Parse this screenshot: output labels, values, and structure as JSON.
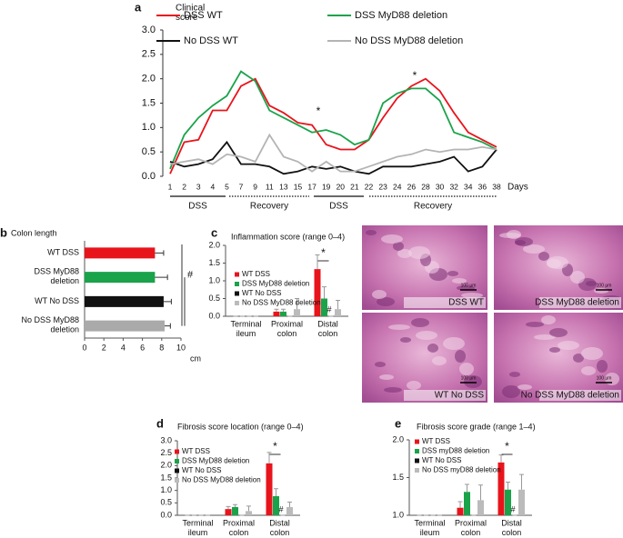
{
  "chart_data": [
    {
      "panel": "a",
      "type": "line",
      "ylabel": "Clinical score",
      "xlabel": "Days",
      "categories": [
        1,
        2,
        3,
        4,
        5,
        7,
        9,
        11,
        13,
        15,
        17,
        19,
        20,
        21,
        22,
        23,
        24,
        26,
        28,
        30,
        32,
        34,
        36,
        38
      ],
      "ylim": [
        0,
        3
      ],
      "yticks": [
        {
          "value": 0,
          "label": "0.0"
        },
        0.5,
        {
          "value": 1,
          "label": "1.0"
        },
        1.5,
        {
          "value": 2,
          "label": "2.0"
        },
        2.5,
        {
          "value": 3,
          "label": "3.0"
        }
      ],
      "series": [
        {
          "name": "DSS WT",
          "color": "#e8141c",
          "values": [
            0.05,
            0.7,
            0.75,
            1.35,
            1.35,
            1.85,
            2.0,
            1.45,
            1.3,
            1.1,
            1.05,
            0.65,
            0.55,
            0.55,
            0.75,
            1.2,
            1.6,
            1.85,
            2.0,
            1.75,
            1.3,
            0.9,
            0.75,
            0.6
          ]
        },
        {
          "name": "DSS MyD88 deletion",
          "color": "#1aa34a",
          "values": [
            0.15,
            0.85,
            1.2,
            1.45,
            1.65,
            2.15,
            1.95,
            1.35,
            1.2,
            1.05,
            0.9,
            0.95,
            0.85,
            0.65,
            0.75,
            1.5,
            1.7,
            1.8,
            1.8,
            1.55,
            0.9,
            0.8,
            0.7,
            0.55
          ]
        },
        {
          "name": "No DSS WT",
          "color": "#111111",
          "values": [
            0.3,
            0.2,
            0.25,
            0.35,
            0.7,
            0.25,
            0.25,
            0.2,
            0.05,
            0.1,
            0.2,
            0.15,
            0.2,
            0.1,
            0.05,
            0.2,
            0.2,
            0.2,
            0.25,
            0.3,
            0.4,
            0.1,
            0.2,
            0.55
          ]
        },
        {
          "name": "No DSS MyD88 deletion",
          "color": "#b4b4b4",
          "values": [
            0.25,
            0.3,
            0.35,
            0.25,
            0.45,
            0.4,
            0.3,
            0.85,
            0.4,
            0.3,
            0.1,
            0.3,
            0.1,
            0.1,
            0.2,
            0.3,
            0.4,
            0.45,
            0.55,
            0.5,
            0.55,
            0.55,
            0.6,
            0.55
          ]
        }
      ],
      "phases": [
        "DSS",
        "Recovery",
        "DSS",
        "Recovery"
      ],
      "annotations": [
        "*",
        "*"
      ]
    },
    {
      "panel": "b",
      "type": "barh",
      "title": "Colon length",
      "xlabel": "cm",
      "categories": [
        "WT DSS",
        "DSS MyD88 deletion",
        "WT No DSS",
        "No DSS MyD88 deletion"
      ],
      "values": [
        7.3,
        7.3,
        8.2,
        8.3
      ],
      "errors": [
        0.9,
        1.3,
        0.8,
        0.6
      ],
      "colors": [
        "#e8141c",
        "#1aa34a",
        "#111111",
        "#aaaaaa"
      ],
      "xlim": [
        0,
        10
      ],
      "xticks": [
        0,
        2,
        4,
        6,
        8,
        10
      ],
      "annotations": [
        "#"
      ]
    },
    {
      "panel": "c",
      "type": "bar",
      "title": "Inflammation score (range 0–4)",
      "categories": [
        "Terminal ileum",
        "Proximal colon",
        "Distal colon"
      ],
      "ylim": [
        0,
        2
      ],
      "yticks": [
        {
          "value": 0,
          "label": "0.0"
        },
        0.5,
        {
          "value": 1,
          "label": "1.0"
        },
        1.5,
        {
          "value": 2,
          "label": "2.0"
        }
      ],
      "series": [
        {
          "name": "WT DSS",
          "color": "#e8141c",
          "values": [
            0,
            0.13,
            1.33
          ],
          "errors": [
            0,
            0.07,
            0.4
          ]
        },
        {
          "name": "DSS MyD88 deletion",
          "color": "#1aa34a",
          "values": [
            0,
            0.13,
            0.5
          ],
          "errors": [
            0,
            0.07,
            0.33
          ]
        },
        {
          "name": "WT No DSS",
          "color": "#111111",
          "values": [
            0,
            0,
            0
          ],
          "errors": [
            0,
            0,
            0
          ]
        },
        {
          "name": "No DSS MyD88 deletion",
          "color": "#bbbbbb",
          "values": [
            0,
            0.2,
            0.2
          ],
          "errors": [
            0,
            0.3,
            0.25
          ]
        }
      ],
      "annotations": [
        "*",
        "#"
      ]
    },
    {
      "panel": "d",
      "type": "bar",
      "title": "Fibrosis score location (range 0–4)",
      "categories": [
        "Terminal ileum",
        "Proximal colon",
        "Distal colon"
      ],
      "ylim": [
        0,
        3
      ],
      "yticks": [
        {
          "value": 0,
          "label": "0.0"
        },
        0.5,
        {
          "value": 1,
          "label": "1.0"
        },
        1.5,
        {
          "value": 2,
          "label": "2.0"
        },
        2.5,
        {
          "value": 3,
          "label": "3.0"
        }
      ],
      "series": [
        {
          "name": "WT DSS",
          "color": "#e8141c",
          "values": [
            0,
            0.25,
            2.09
          ],
          "errors": [
            0,
            0.1,
            0.44
          ]
        },
        {
          "name": "DSS MyD88 deletion",
          "color": "#1aa34a",
          "values": [
            0,
            0.33,
            0.77
          ],
          "errors": [
            0,
            0.1,
            0.3
          ]
        },
        {
          "name": "WT No DSS",
          "color": "#111111",
          "values": [
            0,
            0,
            0
          ],
          "errors": [
            0,
            0,
            0
          ]
        },
        {
          "name": "No DSS MyD88 deletion",
          "color": "#bbbbbb",
          "values": [
            0,
            0.17,
            0.33
          ],
          "errors": [
            0,
            0.2,
            0.2
          ]
        }
      ],
      "annotations": [
        "*",
        "#"
      ]
    },
    {
      "panel": "e",
      "type": "bar",
      "title": "Fibrosis score grade (range 1–4)",
      "categories": [
        "Terminal ileum",
        "Proximal colon",
        "Distal colon"
      ],
      "ylim": [
        1,
        2
      ],
      "yticks": [
        {
          "value": 1,
          "label": "1.0"
        },
        1.5,
        {
          "value": 2,
          "label": "2.0"
        }
      ],
      "series": [
        {
          "name": "WT DSS",
          "color": "#e8141c",
          "values": [
            1,
            1.1,
            1.7
          ],
          "errors": [
            0,
            0.08,
            0.1
          ]
        },
        {
          "name": "DSS myD88 deletion",
          "color": "#1aa34a",
          "values": [
            1,
            1.31,
            1.34
          ],
          "errors": [
            0,
            0.1,
            0.1
          ]
        },
        {
          "name": "WT No DSS",
          "color": "#111111",
          "values": [
            1,
            1,
            1
          ],
          "errors": [
            0,
            0,
            0
          ]
        },
        {
          "name": "No DSS myD88 deletion",
          "color": "#bbbbbb",
          "values": [
            1,
            1.2,
            1.34
          ],
          "errors": [
            0,
            0.2,
            0.2
          ]
        }
      ],
      "annotations": [
        "*",
        "#"
      ]
    }
  ],
  "histology": [
    {
      "label": "DSS WT",
      "scale": "100 µm"
    },
    {
      "label": "DSS MyD88 deletion",
      "scale": "100 µm"
    },
    {
      "label": "WT No DSS",
      "scale": "100 µm"
    },
    {
      "label": "No DSS MyD88 deletion",
      "scale": "100 µm"
    }
  ]
}
